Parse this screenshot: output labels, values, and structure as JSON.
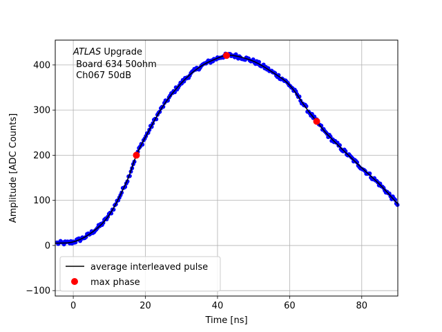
{
  "chart_data": {
    "type": "scatter",
    "title": "",
    "xlabel": "Time [ns]",
    "ylabel": "Amplitude [ADC Counts]",
    "xlim": [
      -5,
      90
    ],
    "ylim": [
      -112,
      455
    ],
    "xticks": [
      0,
      20,
      40,
      60,
      80
    ],
    "yticks": [
      -100,
      0,
      100,
      200,
      300,
      400
    ],
    "grid": true,
    "legend_position": "lower-left",
    "annotation": {
      "italic": "ATLAS",
      "line1_rest": " Upgrade",
      "line2": " Board 634 50ohm",
      "line3": " Ch067 50dB"
    },
    "colors": {
      "samples": "#0000ff",
      "average": "#000000",
      "max_phase": "#ff0000",
      "grid": "#b0b0b0"
    },
    "pulse_knots": [
      [
        -5,
        5
      ],
      [
        0,
        8
      ],
      [
        5,
        28
      ],
      [
        10,
        68
      ],
      [
        15,
        145
      ],
      [
        17.5,
        200
      ],
      [
        20,
        240
      ],
      [
        25,
        310
      ],
      [
        30,
        360
      ],
      [
        35,
        395
      ],
      [
        40,
        415
      ],
      [
        42.5,
        421
      ],
      [
        45,
        420
      ],
      [
        50,
        408
      ],
      [
        55,
        385
      ],
      [
        60,
        355
      ],
      [
        65,
        300
      ],
      [
        67.5,
        275
      ],
      [
        70,
        250
      ],
      [
        75,
        210
      ],
      [
        80,
        172
      ],
      [
        85,
        135
      ],
      [
        90,
        92
      ]
    ],
    "series": [
      {
        "name": "average interleaved pulse",
        "style": "line"
      },
      {
        "name": "max phase",
        "style": "marker",
        "x": [
          17.5,
          42.5,
          67.5
        ],
        "y": [
          200,
          421,
          275
        ]
      }
    ]
  },
  "legend": {
    "items": [
      {
        "label": "average interleaved pulse"
      },
      {
        "label": "max phase"
      }
    ]
  }
}
